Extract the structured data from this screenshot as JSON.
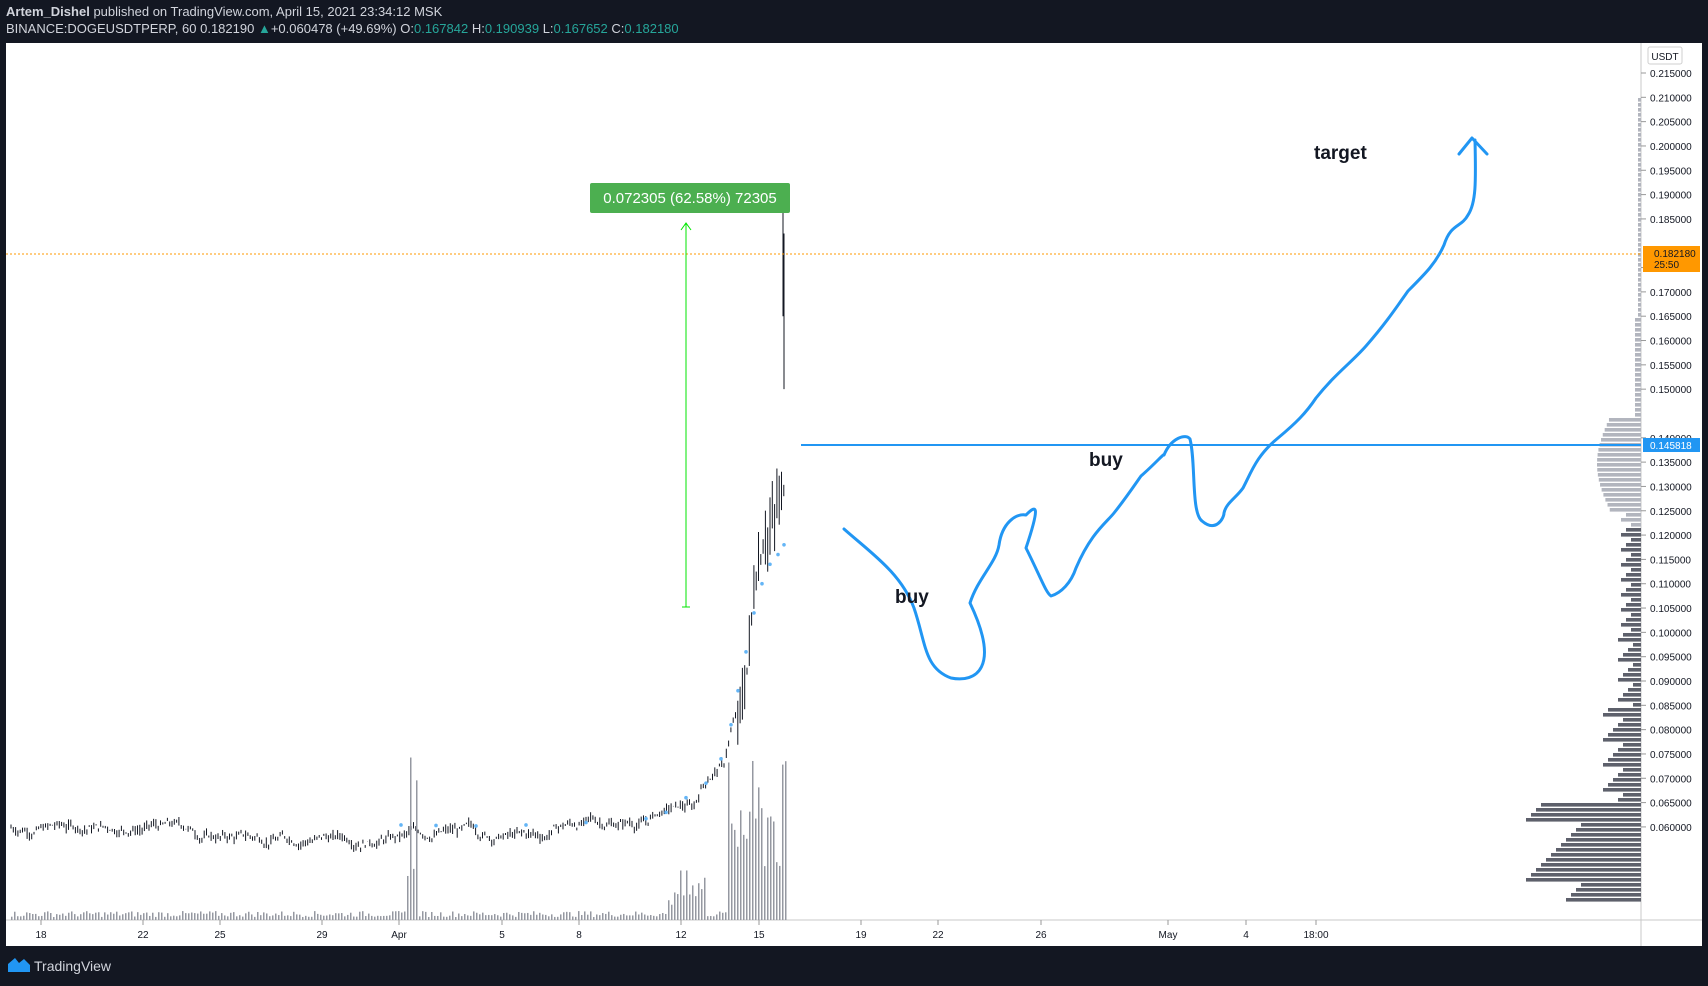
{
  "header": {
    "author": "Artem_Dishel",
    "published_text": "published on TradingView.com, April 15, 2021 23:34:12 MSK",
    "symbol": "BINANCE:DOGEUSDTPERP, 60",
    "last": "0.182190",
    "change_arrow": "▲",
    "change": "+0.060478 (+49.69%)",
    "open_label": "O:",
    "open": "0.167842",
    "high_label": "H:",
    "high": "0.190939",
    "low_label": "L:",
    "low": "0.167652",
    "close_label": "C:",
    "close": "0.182180"
  },
  "chart": {
    "currency": "USDT",
    "price_axis": [
      "0.215000",
      "0.210000",
      "0.205000",
      "0.200000",
      "0.195000",
      "0.190000",
      "0.185000",
      "0.175000",
      "0.170000",
      "0.165000",
      "0.160000",
      "0.155000",
      "0.150000",
      "0.140000",
      "0.135000",
      "0.130000",
      "0.125000",
      "0.120000",
      "0.115000",
      "0.110000",
      "0.105000",
      "0.100000",
      "0.095000",
      "0.090000",
      "0.085000",
      "0.080000",
      "0.075000",
      "0.070000",
      "0.065000",
      "0.060000"
    ],
    "time_axis": [
      "18",
      "22",
      "25",
      "29",
      "Apr",
      "5",
      "8",
      "12",
      "15",
      "19",
      "22",
      "26",
      "May",
      "4",
      "18:00"
    ],
    "current_price_label": "0.182180",
    "countdown": "25:50",
    "level_label": "0.145818",
    "measure_label": "0.072305 (62.58%) 72305",
    "annotations": {
      "buy1": "buy",
      "buy2": "buy",
      "target": "target"
    },
    "colors": {
      "accent": "#2196f3",
      "current": "#ff9800",
      "measure": "#4caf50",
      "measure_line": "#00e600"
    }
  },
  "footer": {
    "brand": "TradingView"
  }
}
